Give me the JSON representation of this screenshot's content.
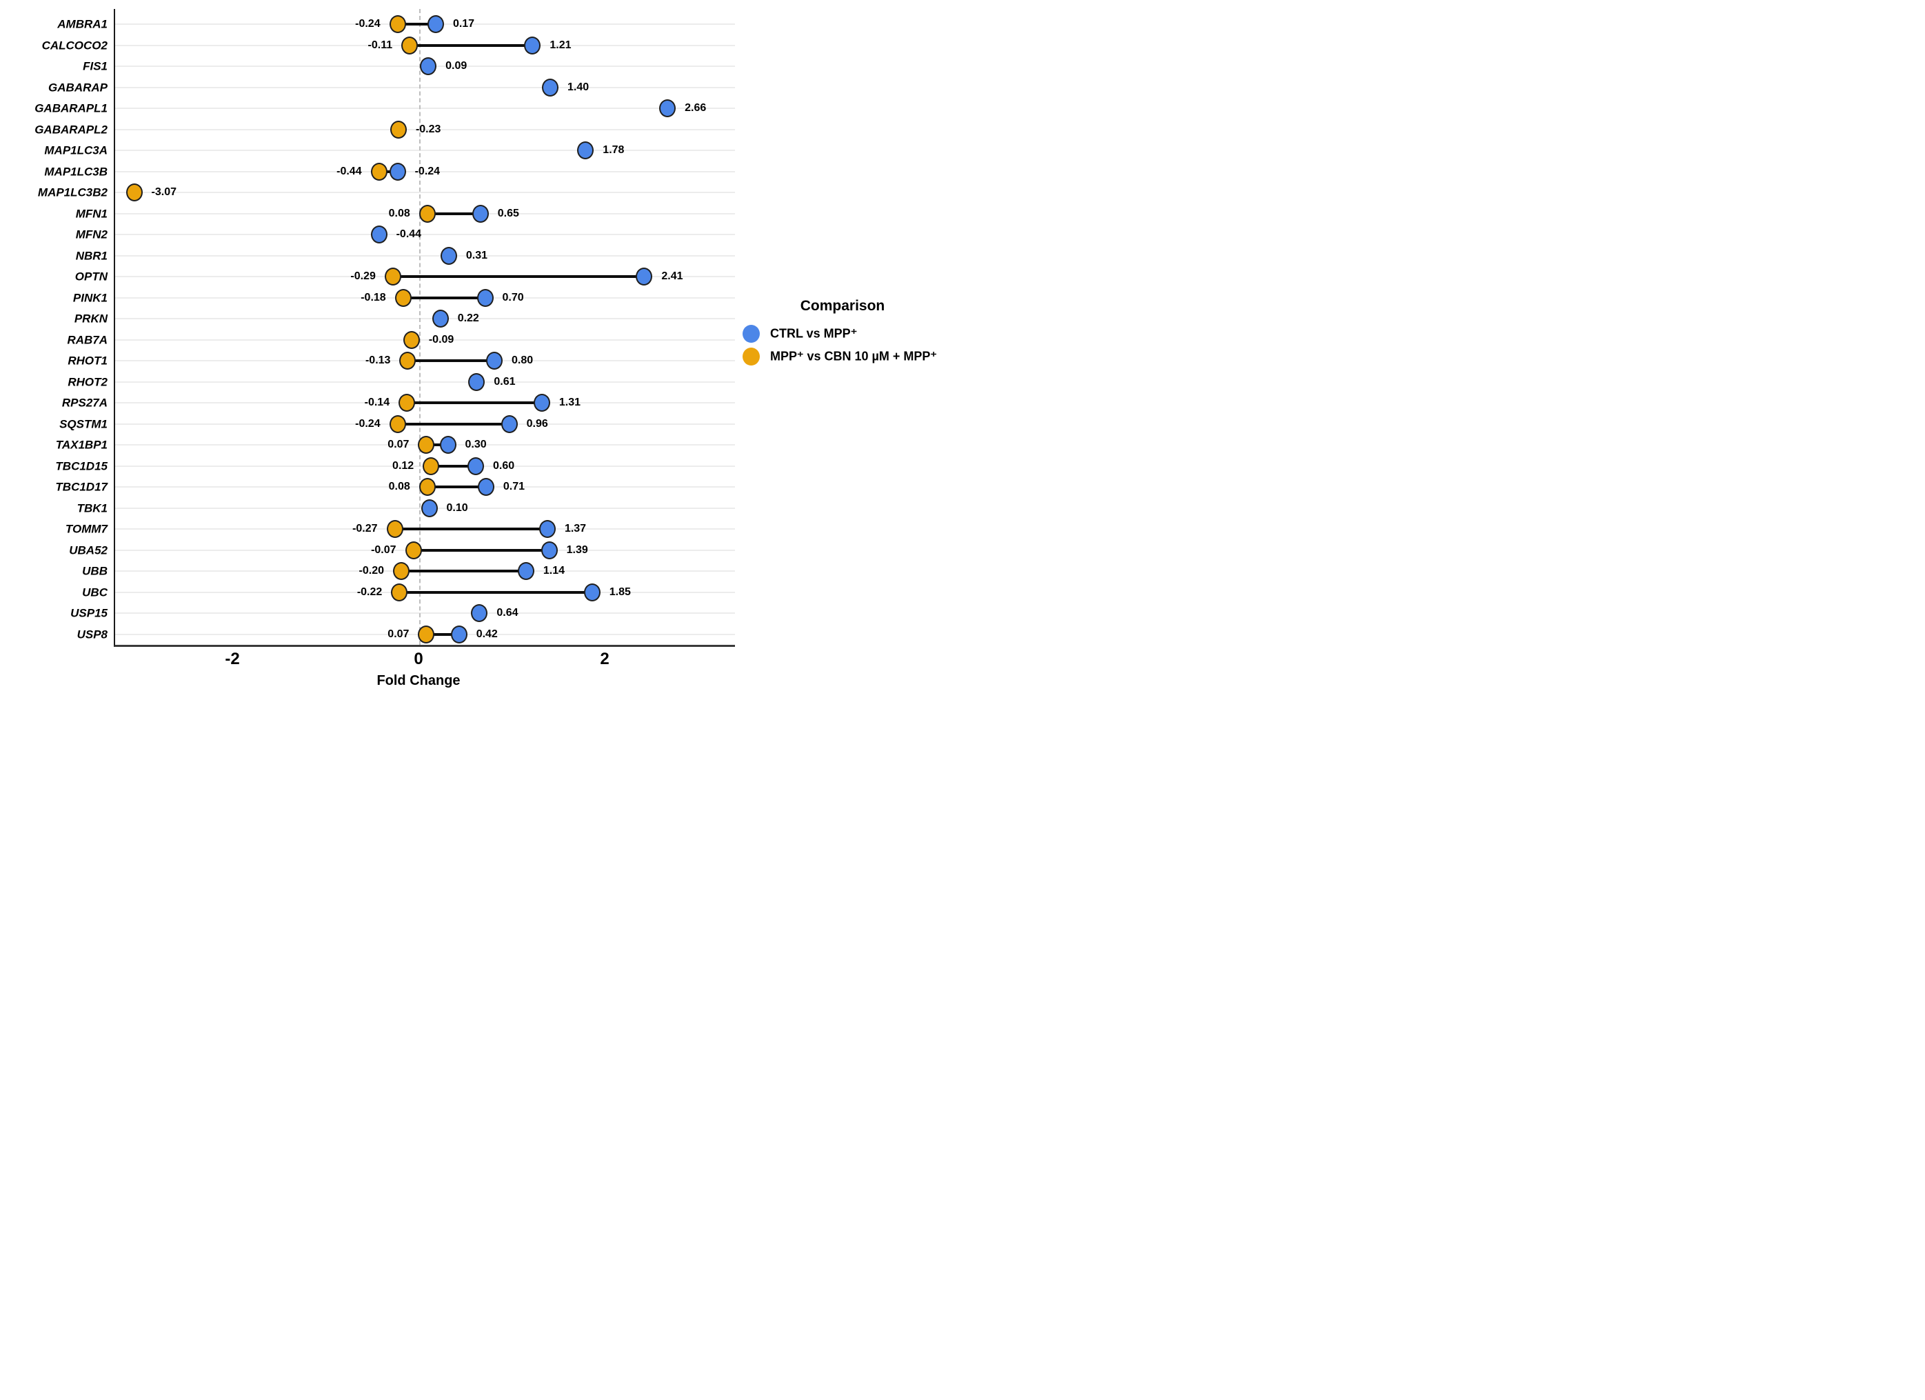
{
  "chart_data": {
    "type": "scatter",
    "subtype": "dumbbell",
    "title": "",
    "xlabel": "Fold Change",
    "ylabel": "",
    "xlim": [
      -3.27,
      3.39
    ],
    "x_ticks": [
      -2,
      0,
      2
    ],
    "x_tick_labels": [
      "-2",
      "0",
      "2"
    ],
    "grid": "horizontal-per-gene",
    "zero_reference_line": true,
    "legend": {
      "position": "right",
      "title": "Comparison",
      "items": [
        {
          "label": "CTRL vs MPP⁺",
          "color": "#4C86E8"
        },
        {
          "label": "MPP⁺ vs CBN 10 µM + MPP⁺",
          "color": "#EBA40C"
        }
      ]
    },
    "colors": {
      "blue_series": "#4C86E8",
      "orange_series": "#EBA40C",
      "dot_outline": "#1f1f1f",
      "connector": "#0d0d0d",
      "zero_line": "#bdbdbd",
      "gridline": "#ececec"
    },
    "series_meaning": {
      "blue": "CTRL vs MPP⁺",
      "orange": "MPP⁺ vs CBN 10 µM + MPP⁺"
    },
    "genes": [
      {
        "gene": "AMBRA1",
        "orange": -0.24,
        "orange_label": "-0.24",
        "blue": 0.17,
        "blue_label": "0.17"
      },
      {
        "gene": "CALCOCO2",
        "orange": -0.11,
        "orange_label": "-0.11",
        "blue": 1.21,
        "blue_label": "1.21"
      },
      {
        "gene": "FIS1",
        "orange": null,
        "orange_label": null,
        "blue": 0.09,
        "blue_label": "0.09"
      },
      {
        "gene": "GABARAP",
        "orange": null,
        "orange_label": null,
        "blue": 1.4,
        "blue_label": "1.40"
      },
      {
        "gene": "GABARAPL1",
        "orange": null,
        "orange_label": null,
        "blue": 2.66,
        "blue_label": "2.66"
      },
      {
        "gene": "GABARAPL2",
        "orange": -0.23,
        "orange_label": "-0.23",
        "blue": null,
        "blue_label": null
      },
      {
        "gene": "MAP1LC3A",
        "orange": null,
        "orange_label": null,
        "blue": 1.78,
        "blue_label": "1.78"
      },
      {
        "gene": "MAP1LC3B",
        "orange": -0.44,
        "orange_label": "-0.44",
        "blue": -0.24,
        "blue_label": "-0.24"
      },
      {
        "gene": "MAP1LC3B2",
        "orange": -3.07,
        "orange_label": "-3.07",
        "blue": null,
        "blue_label": null
      },
      {
        "gene": "MFN1",
        "orange": 0.08,
        "orange_label": "0.08",
        "blue": 0.65,
        "blue_label": "0.65"
      },
      {
        "gene": "MFN2",
        "orange": null,
        "orange_label": null,
        "blue": -0.44,
        "blue_label": "-0.44"
      },
      {
        "gene": "NBR1",
        "orange": null,
        "orange_label": null,
        "blue": 0.31,
        "blue_label": "0.31"
      },
      {
        "gene": "OPTN",
        "orange": -0.29,
        "orange_label": "-0.29",
        "blue": 2.41,
        "blue_label": "2.41"
      },
      {
        "gene": "PINK1",
        "orange": -0.18,
        "orange_label": "-0.18",
        "blue": 0.7,
        "blue_label": "0.70"
      },
      {
        "gene": "PRKN",
        "orange": null,
        "orange_label": null,
        "blue": 0.22,
        "blue_label": "0.22"
      },
      {
        "gene": "RAB7A",
        "orange": -0.09,
        "orange_label": "-0.09",
        "blue": null,
        "blue_label": null
      },
      {
        "gene": "RHOT1",
        "orange": -0.13,
        "orange_label": "-0.13",
        "blue": 0.8,
        "blue_label": "0.80"
      },
      {
        "gene": "RHOT2",
        "orange": null,
        "orange_label": null,
        "blue": 0.61,
        "blue_label": "0.61"
      },
      {
        "gene": "RPS27A",
        "orange": -0.14,
        "orange_label": "-0.14",
        "blue": 1.31,
        "blue_label": "1.31"
      },
      {
        "gene": "SQSTM1",
        "orange": -0.24,
        "orange_label": "-0.24",
        "blue": 0.96,
        "blue_label": "0.96"
      },
      {
        "gene": "TAX1BP1",
        "orange": 0.07,
        "orange_label": "0.07",
        "blue": 0.3,
        "blue_label": "0.30"
      },
      {
        "gene": "TBC1D15",
        "orange": 0.12,
        "orange_label": "0.12",
        "blue": 0.6,
        "blue_label": "0.60"
      },
      {
        "gene": "TBC1D17",
        "orange": 0.08,
        "orange_label": "0.08",
        "blue": 0.71,
        "blue_label": "0.71"
      },
      {
        "gene": "TBK1",
        "orange": null,
        "orange_label": null,
        "blue": 0.1,
        "blue_label": "0.10"
      },
      {
        "gene": "TOMM7",
        "orange": -0.27,
        "orange_label": "-0.27",
        "blue": 1.37,
        "blue_label": "1.37"
      },
      {
        "gene": "UBA52",
        "orange": -0.07,
        "orange_label": "-0.07",
        "blue": 1.39,
        "blue_label": "1.39"
      },
      {
        "gene": "UBB",
        "orange": -0.2,
        "orange_label": "-0.20",
        "blue": 1.14,
        "blue_label": "1.14"
      },
      {
        "gene": "UBC",
        "orange": -0.22,
        "orange_label": "-0.22",
        "blue": 1.85,
        "blue_label": "1.85"
      },
      {
        "gene": "USP15",
        "orange": null,
        "orange_label": null,
        "blue": 0.64,
        "blue_label": "0.64"
      },
      {
        "gene": "USP8",
        "orange": 0.07,
        "orange_label": "0.07",
        "blue": 0.42,
        "blue_label": "0.42"
      }
    ]
  }
}
